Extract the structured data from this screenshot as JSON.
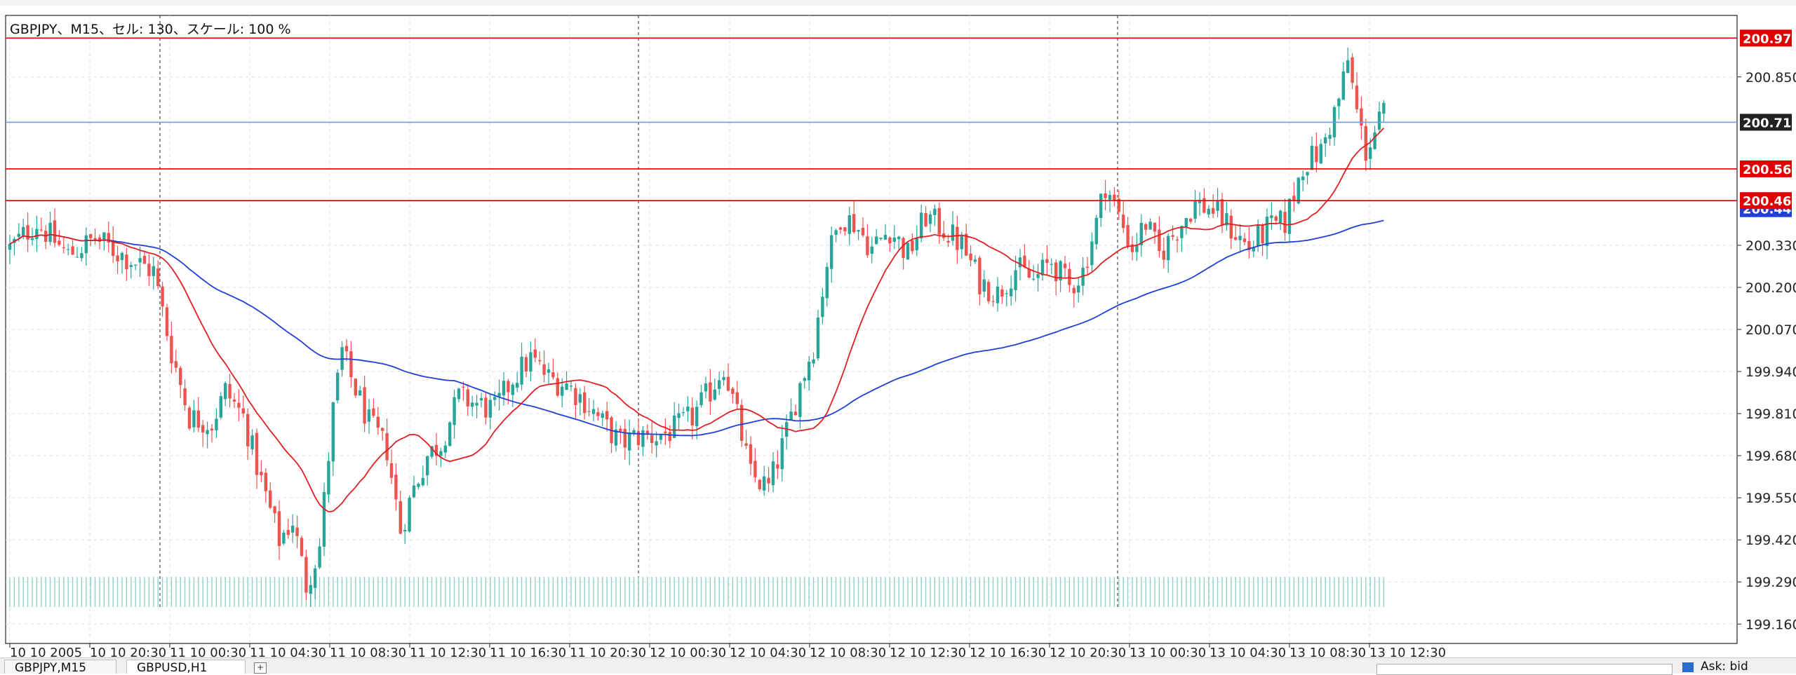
{
  "chart_title": "GBPJPY、M15、セル: 130、スケール: 100 %",
  "tabs": [
    {
      "label": "GBPJPY,M15",
      "active": false
    },
    {
      "label": "GBPUSD,H1",
      "active": true
    }
  ],
  "tab_add_icon": "+",
  "status_text": "Ask: bid",
  "colors": {
    "bull": "#26a69a",
    "bear": "#ef5350",
    "ma_fast": "#e02020",
    "ma_slow": "#1f3fd6",
    "level_line": "#e00000",
    "bid_line": "#6d9be0",
    "bid_label": "#222222",
    "ma_label": "#1f3fd6"
  },
  "chart_data": {
    "type": "candlestick",
    "title": "GBPJPY、M15、セル: 130、スケール: 100 %",
    "ylim": [
      199.1,
      201.04
    ],
    "y_ticks": [
      "200.850",
      "200.330",
      "200.200",
      "200.070",
      "199.940",
      "199.810",
      "199.680",
      "199.550",
      "199.420",
      "199.290",
      "199.160"
    ],
    "x_ticks": [
      "10 10 2005",
      "10 10 20:30",
      "11 10 00:30",
      "11 10 04:30",
      "11 10 08:30",
      "11 10 12:30",
      "11 10 16:30",
      "11 10 20:30",
      "12 10 00:30",
      "12 10 04:30",
      "12 10 08:30",
      "12 10 12:30",
      "12 10 16:30",
      "12 10 20:30",
      "13 10 00:30",
      "13 10 04:30",
      "13 10 08:30",
      "13 10 12:30"
    ],
    "session_separators": [
      "11 10 00:00",
      "12 10 00:00",
      "13 10 00:00"
    ],
    "grid": true,
    "price_levels": [
      {
        "price": 200.97,
        "label": "200.970"
      },
      {
        "price": 200.566,
        "label": "200.566"
      },
      {
        "price": 200.468,
        "label": "200.468"
      }
    ],
    "bid_line": {
      "price": 200.71,
      "label": "200.710"
    },
    "ma_label": {
      "price": 200.443,
      "label": "200.443"
    },
    "price_anchors": [
      [
        0,
        200.32
      ],
      [
        6,
        200.4
      ],
      [
        13,
        200.3
      ],
      [
        19,
        200.35
      ],
      [
        25,
        200.3
      ],
      [
        32,
        200.25
      ],
      [
        36,
        200.0
      ],
      [
        40,
        199.8
      ],
      [
        45,
        199.78
      ],
      [
        48,
        199.88
      ],
      [
        52,
        199.8
      ],
      [
        56,
        199.6
      ],
      [
        60,
        199.42
      ],
      [
        63,
        199.48
      ],
      [
        66,
        199.28
      ],
      [
        69,
        199.4
      ],
      [
        72,
        199.82
      ],
      [
        74,
        200.0
      ],
      [
        76,
        199.92
      ],
      [
        80,
        199.78
      ],
      [
        84,
        199.7
      ],
      [
        87,
        199.45
      ],
      [
        90,
        199.58
      ],
      [
        93,
        199.68
      ],
      [
        96,
        199.72
      ],
      [
        100,
        199.86
      ],
      [
        104,
        199.84
      ],
      [
        108,
        199.82
      ],
      [
        112,
        199.92
      ],
      [
        116,
        199.98
      ],
      [
        120,
        199.92
      ],
      [
        124,
        199.9
      ],
      [
        128,
        199.85
      ],
      [
        132,
        199.78
      ],
      [
        136,
        199.72
      ],
      [
        140,
        199.74
      ],
      [
        144,
        199.74
      ],
      [
        148,
        199.76
      ],
      [
        152,
        199.8
      ],
      [
        156,
        199.88
      ],
      [
        159,
        199.96
      ],
      [
        162,
        199.8
      ],
      [
        165,
        199.62
      ],
      [
        169,
        199.58
      ],
      [
        173,
        199.75
      ],
      [
        176,
        199.9
      ],
      [
        179,
        200.02
      ],
      [
        182,
        200.28
      ],
      [
        185,
        200.42
      ],
      [
        188,
        200.4
      ],
      [
        192,
        200.32
      ],
      [
        196,
        200.38
      ],
      [
        200,
        200.3
      ],
      [
        204,
        200.42
      ],
      [
        208,
        200.38
      ],
      [
        212,
        200.33
      ],
      [
        216,
        200.22
      ],
      [
        220,
        200.18
      ],
      [
        224,
        200.26
      ],
      [
        228,
        200.22
      ],
      [
        232,
        200.28
      ],
      [
        236,
        200.2
      ],
      [
        239,
        200.25
      ],
      [
        242,
        200.4
      ],
      [
        244,
        200.52
      ],
      [
        247,
        200.42
      ],
      [
        250,
        200.32
      ],
      [
        253,
        200.4
      ],
      [
        256,
        200.3
      ],
      [
        260,
        200.38
      ],
      [
        264,
        200.46
      ],
      [
        268,
        200.44
      ],
      [
        272,
        200.38
      ],
      [
        276,
        200.32
      ],
      [
        280,
        200.38
      ],
      [
        284,
        200.4
      ],
      [
        288,
        200.58
      ],
      [
        292,
        200.62
      ],
      [
        294,
        200.7
      ],
      [
        296,
        200.78
      ],
      [
        298,
        200.9
      ],
      [
        300,
        200.74
      ],
      [
        302,
        200.62
      ],
      [
        304,
        200.68
      ],
      [
        306,
        200.74
      ]
    ],
    "volume_bars": "uniform teal ticks along bottom of plot",
    "indicators": [
      {
        "name": "",
        "type": "moving_average",
        "period": 20,
        "color": "#e02020"
      },
      {
        "name": "",
        "type": "moving_average",
        "period": 100,
        "color": "#1f3fd6"
      }
    ]
  }
}
